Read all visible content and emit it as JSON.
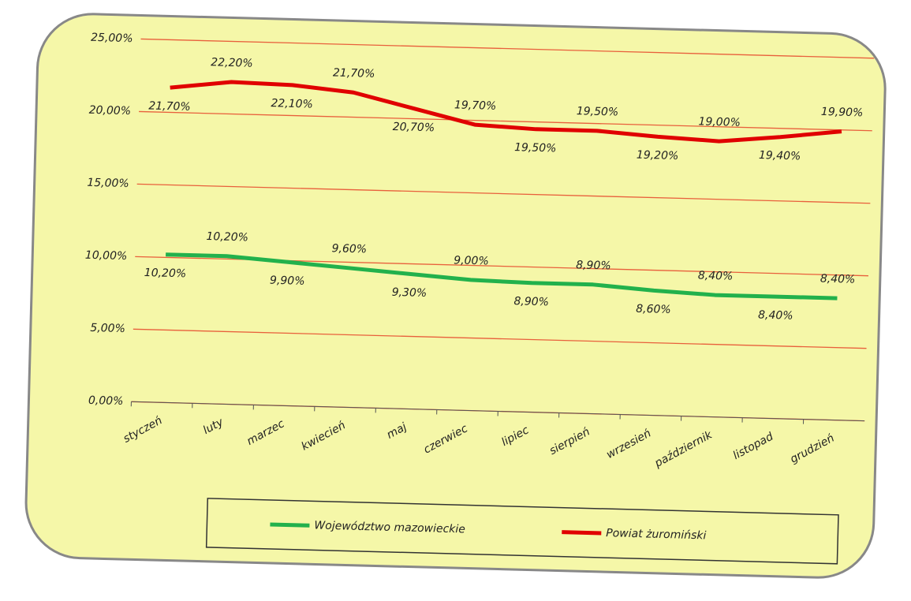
{
  "chart_data": {
    "type": "line",
    "categories": [
      "styczeń",
      "luty",
      "marzec",
      "kwiecień",
      "maj",
      "czerwiec",
      "lipiec",
      "sierpień",
      "wrzesień",
      "październik",
      "listopad",
      "grudzień"
    ],
    "series": [
      {
        "name": "Województwo mazowieckie",
        "color": "#22b14c",
        "values": [
          10.2,
          10.2,
          9.9,
          9.6,
          9.3,
          9.0,
          8.9,
          8.9,
          8.6,
          8.4,
          8.4,
          8.4
        ],
        "value_labels": [
          "10,20%",
          "10,20%",
          "9,90%",
          "9,60%",
          "9,30%",
          "9,00%",
          "8,90%",
          "8,90%",
          "8,60%",
          "8,40%",
          "8,40%",
          "8,40%"
        ]
      },
      {
        "name": "Powiat żuromiński",
        "color": "#e00000",
        "values": [
          21.7,
          22.2,
          22.1,
          21.7,
          20.7,
          19.7,
          19.5,
          19.5,
          19.2,
          19.0,
          19.4,
          19.9
        ],
        "value_labels": [
          "21,70%",
          "22,20%",
          "22,10%",
          "21,70%",
          "20,70%",
          "19,70%",
          "19,50%",
          "19,50%",
          "19,20%",
          "19,00%",
          "19,40%",
          "19,90%"
        ]
      }
    ],
    "ylim": [
      0,
      25
    ],
    "yticks": [
      {
        "value": 0,
        "label": "0,00%"
      },
      {
        "value": 5,
        "label": "5,00%"
      },
      {
        "value": 10,
        "label": "10,00%"
      },
      {
        "value": 15,
        "label": "15,00%"
      },
      {
        "value": 20,
        "label": "20,00%"
      },
      {
        "value": 25,
        "label": "25,00%"
      }
    ],
    "grid": true,
    "legend": "bottom"
  }
}
